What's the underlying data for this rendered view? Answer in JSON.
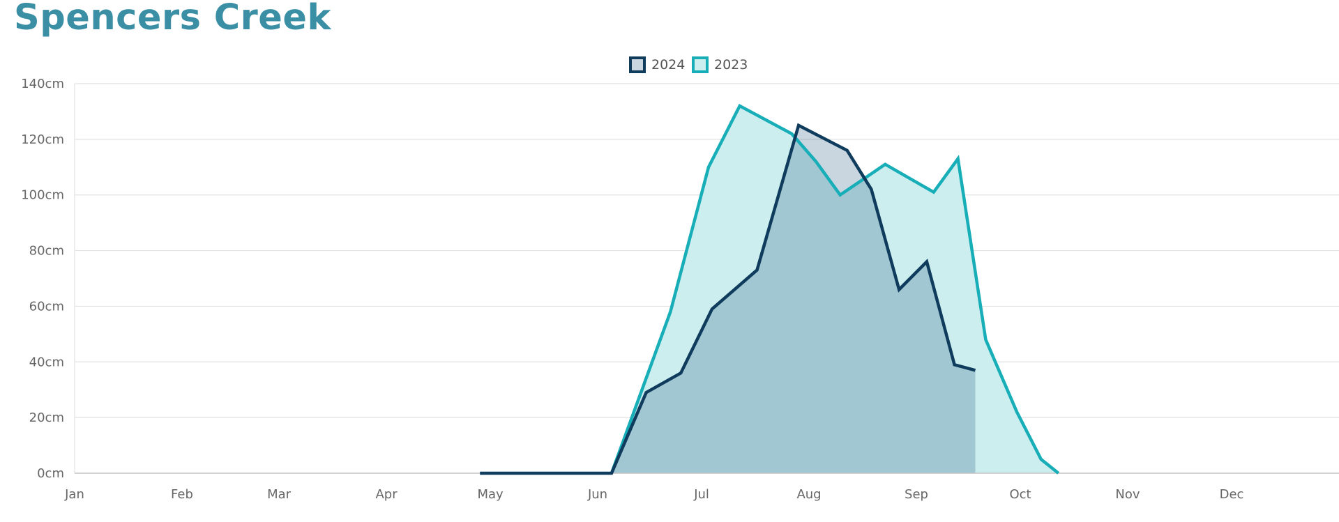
{
  "title": "Spencers Creek",
  "legend": [
    {
      "label": "2024",
      "series": 0
    },
    {
      "label": "2023",
      "series": 1
    }
  ],
  "chart_data": {
    "type": "area",
    "title": "Spencers Creek",
    "xlabel": "",
    "ylabel": "",
    "x_axis": {
      "type": "date",
      "range": [
        "Jan 1",
        "Dec 31"
      ],
      "tick_labels": [
        "Jan",
        "Feb",
        "Mar",
        "Apr",
        "May",
        "Jun",
        "Jul",
        "Aug",
        "Sep",
        "Oct",
        "Nov",
        "Dec"
      ]
    },
    "y_axis": {
      "range": [
        0,
        140
      ],
      "unit": "cm",
      "ticks": [
        0,
        20,
        40,
        60,
        80,
        100,
        120,
        140
      ],
      "tick_labels": [
        "0cm",
        "20cm",
        "40cm",
        "60cm",
        "80cm",
        "100cm",
        "120cm",
        "140cm"
      ]
    },
    "grid": "horizontal",
    "legend_position": "top-center",
    "series": [
      {
        "name": "2024",
        "line_color": "#0f3b5c",
        "fill_color": "#c9d6e0",
        "points": [
          [
            "Apr 28",
            0
          ],
          [
            "May 5",
            0
          ],
          [
            "May 12",
            0
          ],
          [
            "May 19",
            0
          ],
          [
            "May 26",
            0
          ],
          [
            "Jun 2",
            0
          ],
          [
            "Jun 5",
            0
          ],
          [
            "Jun 15",
            29
          ],
          [
            "Jun 25",
            36
          ],
          [
            "Jul 4",
            59
          ],
          [
            "Jul 17",
            73
          ],
          [
            "Jul 29",
            125
          ],
          [
            "Aug 12",
            116
          ],
          [
            "Aug 19",
            102
          ],
          [
            "Aug 27",
            66
          ],
          [
            "Sep 4",
            76
          ],
          [
            "Sep 12",
            39
          ],
          [
            "Sep 18",
            37
          ]
        ]
      },
      {
        "name": "2023",
        "line_color": "#17aeb8",
        "fill_color": "#cdeeef",
        "points": [
          [
            "Jun 5",
            0
          ],
          [
            "Jun 22",
            58
          ],
          [
            "Jul 3",
            110
          ],
          [
            "Jul 12",
            132
          ],
          [
            "Jul 27",
            122
          ],
          [
            "Aug 3",
            112
          ],
          [
            "Aug 10",
            100
          ],
          [
            "Aug 23",
            111
          ],
          [
            "Sep 6",
            101
          ],
          [
            "Sep 13",
            113
          ],
          [
            "Sep 21",
            48
          ],
          [
            "Sep 30",
            22
          ],
          [
            "Oct 7",
            5
          ],
          [
            "Oct 12",
            0
          ]
        ]
      }
    ]
  }
}
